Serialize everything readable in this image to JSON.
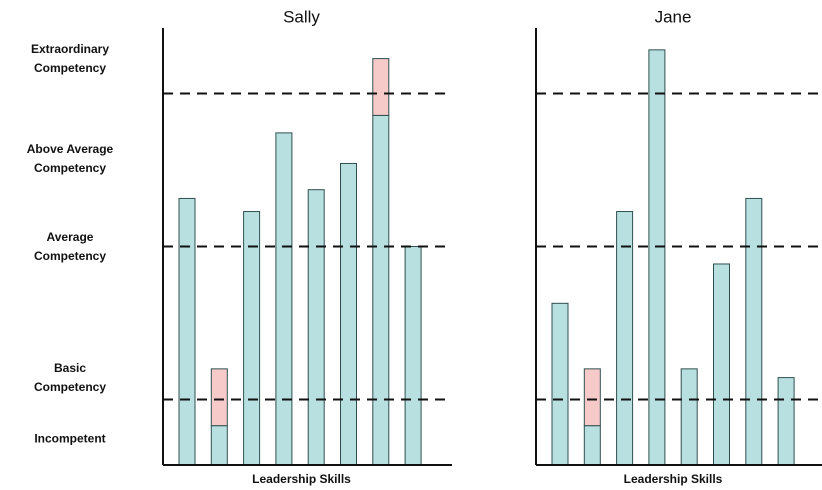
{
  "chart_data": [
    {
      "type": "bar",
      "title": "Sally",
      "x_label": "Leadership Skills",
      "categories": [
        null,
        null,
        null,
        null,
        null,
        null,
        null,
        null
      ],
      "series": [
        {
          "color": "#b9e0e1",
          "values": [
            61,
            9,
            58,
            76,
            63,
            69,
            80,
            50
          ]
        },
        {
          "color": "#f7caca",
          "values": [
            null,
            13,
            null,
            null,
            null,
            null,
            13,
            null
          ]
        }
      ],
      "ylim": [
        0,
        100
      ],
      "yticks": [
        {
          "value": 93,
          "label": "Extraordinary Competency"
        },
        {
          "value": 70,
          "label": "Above Average Competency"
        },
        {
          "value": 50,
          "label": "Average Competency"
        },
        {
          "value": 20,
          "label": "Basic Competency"
        },
        {
          "value": 6,
          "label": "Incompetent"
        }
      ],
      "reference_lines": [
        15,
        50,
        85
      ]
    },
    {
      "type": "bar",
      "title": "Jane",
      "x_label": "Leadership Skills",
      "categories": [
        null,
        null,
        null,
        null,
        null,
        null,
        null,
        null
      ],
      "series": [
        {
          "color": "#b9e0e1",
          "values": [
            37,
            9,
            58,
            95,
            22,
            46,
            61,
            20
          ]
        },
        {
          "color": "#f7caca",
          "values": [
            null,
            13,
            null,
            null,
            null,
            null,
            null,
            null
          ]
        }
      ],
      "ylim": [
        0,
        100
      ],
      "yticks": [],
      "reference_lines": [
        15,
        50,
        85
      ]
    }
  ]
}
